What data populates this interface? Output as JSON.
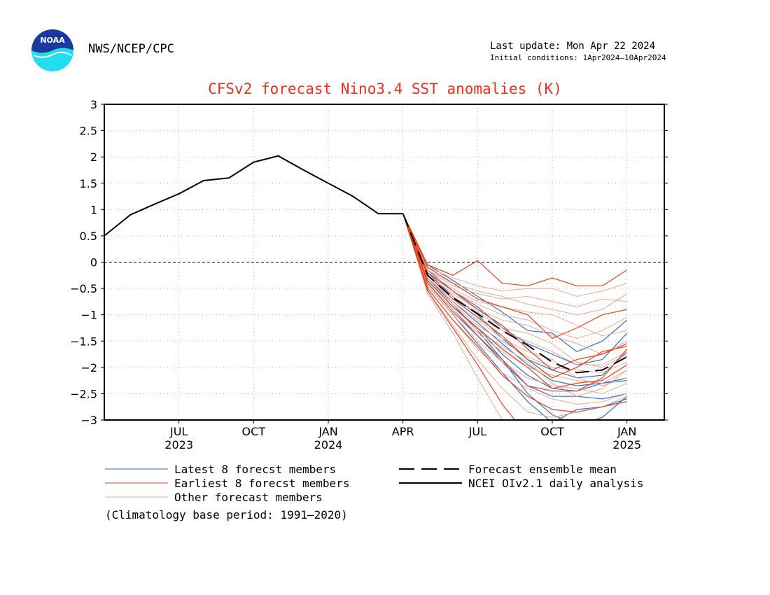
{
  "header": {
    "agency": "NWS/NCEP/CPC",
    "last_update": "Last update: Mon Apr 22 2024",
    "initial_conditions": "Initial conditions: 1Apr2024—10Apr2024",
    "logo_text": "NOAA"
  },
  "legend": {
    "latest": "Latest 8 forecst members",
    "earliest": "Earliest 8 forecst members",
    "other": "Other forecast members",
    "mean": "Forecast ensemble mean",
    "analysis": "NCEI OIv2.1 daily analysis",
    "base_period": "(Climatology base period: 1991—2020)"
  },
  "colors": {
    "title": "#e8321e",
    "latest": "#3070c8",
    "earliest": "#e8401a",
    "other": "#e8a898",
    "analysis": "#000000",
    "mean": "#000000",
    "logo_outer": "#22ddee",
    "logo_inner": "#1a3aa0"
  },
  "chart_data": {
    "type": "line",
    "title": "CFSv2 forecast Nino3.4 SST anomalies (K)",
    "xlabel": "",
    "ylabel": "",
    "x_unit": "months since Jul 2023 (tick positions)",
    "xlim": [
      -1,
      6.5
    ],
    "ylim": [
      -3,
      3
    ],
    "yticks": [
      3,
      2.5,
      2,
      1.5,
      1,
      0.5,
      0,
      -0.5,
      -1,
      -1.5,
      -2,
      -2.5,
      -3
    ],
    "ytick_labels": [
      "3",
      "2.5",
      "2",
      "1.5",
      "1",
      "0.5",
      "0",
      "−0.5",
      "−1",
      "−1.5",
      "−2",
      "−2.5",
      "−3"
    ],
    "xticks": [
      {
        "x": 0,
        "label": "JUL",
        "year": "2023"
      },
      {
        "x": 1,
        "label": "OCT",
        "year": ""
      },
      {
        "x": 2,
        "label": "JAN",
        "year": "2024"
      },
      {
        "x": 3,
        "label": "APR",
        "year": ""
      },
      {
        "x": 4,
        "label": "JUL",
        "year": ""
      },
      {
        "x": 5,
        "label": "OCT",
        "year": ""
      },
      {
        "x": 6,
        "label": "JAN",
        "year": "2025"
      }
    ],
    "grid": true,
    "zero_line": true,
    "series": [
      {
        "name": "NCEI OIv2.1 daily analysis",
        "style": "analysis",
        "x": [
          -1.0,
          -0.65,
          -0.33,
          0.0,
          0.33,
          0.67,
          1.0,
          1.33,
          1.67,
          2.0,
          2.33,
          2.67,
          3.0
        ],
        "y": [
          0.5,
          0.9,
          1.1,
          1.3,
          1.55,
          1.6,
          1.9,
          2.02,
          1.75,
          1.5,
          1.25,
          0.92,
          0.92
        ]
      },
      {
        "name": "Forecast ensemble mean",
        "style": "mean",
        "x": [
          3.0,
          3.33,
          3.67,
          4.0,
          4.33,
          4.67,
          5.0,
          5.33,
          5.67,
          6.0
        ],
        "y": [
          0.92,
          -0.25,
          -0.68,
          -0.98,
          -1.3,
          -1.58,
          -1.9,
          -2.1,
          -2.05,
          -1.8
        ]
      }
    ],
    "member_groups": [
      {
        "style": "latest",
        "x": [
          3.0,
          3.33,
          3.67,
          4.0,
          4.33,
          4.67,
          5.0,
          5.33,
          5.67,
          6.0
        ],
        "members": [
          [
            0.92,
            -0.05,
            -0.35,
            -0.65,
            -0.95,
            -1.3,
            -1.35,
            -1.7,
            -1.5,
            -1.1
          ],
          [
            0.92,
            -0.15,
            -0.55,
            -0.85,
            -1.25,
            -1.55,
            -1.75,
            -1.95,
            -1.85,
            -1.35
          ],
          [
            0.92,
            -0.2,
            -0.65,
            -1.0,
            -1.45,
            -1.85,
            -2.05,
            -2.2,
            -2.15,
            -1.7
          ],
          [
            0.92,
            -0.3,
            -0.75,
            -1.15,
            -1.55,
            -1.95,
            -2.25,
            -2.35,
            -2.3,
            -2.2
          ],
          [
            0.92,
            -0.35,
            -0.85,
            -1.25,
            -1.75,
            -2.15,
            -2.4,
            -2.45,
            -2.3,
            -2.25
          ],
          [
            0.92,
            -0.4,
            -0.9,
            -1.4,
            -1.9,
            -2.35,
            -2.55,
            -2.55,
            -2.6,
            -2.5
          ],
          [
            0.92,
            -0.45,
            -1.0,
            -1.55,
            -2.1,
            -2.65,
            -3.05,
            -2.8,
            -2.75,
            -2.6
          ],
          [
            0.92,
            -0.3,
            -0.8,
            -1.3,
            -1.85,
            -2.5,
            -2.9,
            -3.1,
            -2.95,
            -2.55
          ]
        ]
      },
      {
        "style": "other",
        "x": [
          3.0,
          3.33,
          3.67,
          4.0,
          4.33,
          4.67,
          5.0,
          5.33,
          5.67,
          6.0
        ],
        "members": [
          [
            0.92,
            -0.1,
            -0.3,
            -0.45,
            -0.55,
            -0.5,
            -0.5,
            -0.65,
            -0.55,
            -0.4
          ],
          [
            0.92,
            -0.15,
            -0.45,
            -0.6,
            -0.7,
            -0.65,
            -0.75,
            -0.85,
            -0.7,
            -0.75
          ],
          [
            0.92,
            -0.2,
            -0.5,
            -0.75,
            -0.85,
            -0.95,
            -1.0,
            -1.2,
            -1.4,
            -1.3
          ],
          [
            0.92,
            -0.25,
            -0.6,
            -0.9,
            -1.1,
            -1.2,
            -1.4,
            -1.55,
            -1.75,
            -1.5
          ],
          [
            0.92,
            -0.3,
            -0.7,
            -1.05,
            -1.3,
            -1.5,
            -1.7,
            -1.95,
            -1.95,
            -1.7
          ],
          [
            0.92,
            -0.35,
            -0.8,
            -1.2,
            -1.5,
            -1.8,
            -2.0,
            -2.05,
            -2.1,
            -1.9
          ],
          [
            0.92,
            -0.4,
            -0.9,
            -1.35,
            -1.7,
            -2.0,
            -2.15,
            -2.25,
            -2.3,
            -2.05
          ],
          [
            0.92,
            -0.45,
            -1.0,
            -1.5,
            -1.9,
            -2.2,
            -2.35,
            -2.4,
            -2.5,
            -2.3
          ],
          [
            0.92,
            -0.5,
            -1.1,
            -1.65,
            -2.1,
            -2.4,
            -2.6,
            -2.7,
            -2.65,
            -2.5
          ],
          [
            0.92,
            -0.55,
            -1.2,
            -1.85,
            -2.4,
            -2.85,
            -2.95,
            -2.85,
            -2.75,
            -2.55
          ],
          [
            0.92,
            -0.6,
            -1.35,
            -2.2,
            -3.0,
            -3.1,
            -3.1,
            -3.1,
            -3.1,
            -3.1
          ],
          [
            0.92,
            -0.3,
            -0.75,
            -1.1,
            -1.45,
            -1.7,
            -1.85,
            -2.2,
            -2.35,
            -2.2
          ],
          [
            0.92,
            -0.25,
            -0.65,
            -0.95,
            -1.25,
            -1.35,
            -1.55,
            -1.9,
            -2.0,
            -1.75
          ],
          [
            0.92,
            -0.35,
            -0.85,
            -1.3,
            -1.6,
            -1.9,
            -2.3,
            -2.55,
            -2.4,
            -2.05
          ],
          [
            0.92,
            -0.2,
            -0.55,
            -0.8,
            -1.0,
            -1.1,
            -1.3,
            -1.45,
            -1.3,
            -1.05
          ],
          [
            0.92,
            -0.15,
            -0.4,
            -0.55,
            -0.65,
            -0.8,
            -0.9,
            -1.0,
            -0.9,
            -0.6
          ]
        ]
      },
      {
        "style": "earliest",
        "x": [
          3.0,
          3.33,
          3.67,
          4.0,
          4.33,
          4.67,
          5.0,
          5.33,
          5.67,
          6.0
        ],
        "members": [
          [
            0.92,
            -0.05,
            -0.25,
            0.03,
            -0.4,
            -0.45,
            -0.3,
            -0.45,
            -0.45,
            -0.15
          ],
          [
            0.92,
            -0.1,
            -0.4,
            -0.7,
            -0.85,
            -1.0,
            -1.45,
            -1.25,
            -1.0,
            -0.9
          ],
          [
            0.92,
            -0.2,
            -0.55,
            -0.9,
            -1.2,
            -1.65,
            -2.05,
            -1.85,
            -1.75,
            -1.55
          ],
          [
            0.92,
            -0.25,
            -0.7,
            -1.05,
            -1.4,
            -1.85,
            -2.2,
            -2.0,
            -1.7,
            -1.6
          ],
          [
            0.92,
            -0.35,
            -0.85,
            -1.25,
            -1.65,
            -2.0,
            -2.4,
            -2.3,
            -2.25,
            -1.95
          ],
          [
            0.92,
            -0.4,
            -0.95,
            -1.4,
            -1.85,
            -2.35,
            -2.45,
            -2.45,
            -2.2,
            -1.65
          ],
          [
            0.92,
            -0.5,
            -1.1,
            -1.6,
            -2.15,
            -2.55,
            -2.8,
            -2.85,
            -2.75,
            -2.65
          ],
          [
            0.92,
            -0.55,
            -1.25,
            -1.95,
            -2.7,
            -3.3,
            -3.3,
            -3.3,
            -3.3,
            -3.3
          ]
        ]
      }
    ]
  }
}
